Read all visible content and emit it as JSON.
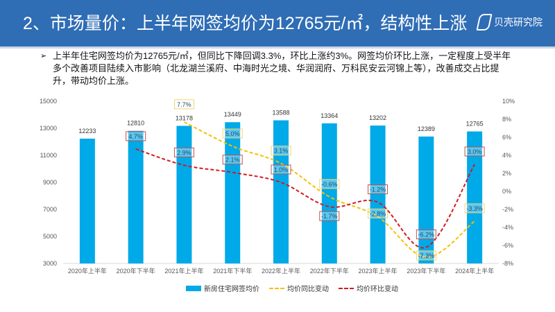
{
  "header": {
    "title": "2、市场量价：上半年网签均价为12765元/㎡，结构性上涨",
    "logo": "贝壳研究院"
  },
  "bullet": {
    "icon": "arrow-bullet-icon",
    "text": "上半年住宅网签均价为12765元/㎡，但同比下降回调3.3%，环比上涨约3%。网签均价环比上涨，一定程度上受半年多个改善项目陆续入市影响（北龙湖兰溪府、中海时光之境、华润润府、万科民安云河锦上等），改善成交占比提升，带动均价上涨。"
  },
  "chart_data": {
    "type": "bar+line",
    "categories": [
      "2020年上半年",
      "2020年下半年",
      "2021年上半年",
      "2021年下半年",
      "2022年上半年",
      "2022年下半年",
      "2023年上半年",
      "2023年下半年",
      "2024年上半年"
    ],
    "series": [
      {
        "name": "新房住宅网签均价",
        "type": "bar",
        "axis": "left",
        "color": "#00a9e8",
        "values": [
          12233,
          12810,
          13178,
          13449,
          13588,
          13364,
          13202,
          12389,
          12765
        ],
        "labels": [
          "12233",
          "12810",
          "13178",
          "13449",
          "13588",
          "13364",
          "13202",
          "12389",
          "12765"
        ]
      },
      {
        "name": "均价同比变动",
        "type": "line",
        "axis": "right",
        "color": "#f5c000",
        "values": [
          null,
          null,
          7.7,
          5.0,
          3.1,
          -0.6,
          -2.8,
          -7.3,
          -3.3
        ],
        "labels": [
          null,
          null,
          "7.7%",
          "5.0%",
          "3.1%",
          "-0.6%",
          "-2.8%",
          "-7.3%",
          "-3.3%"
        ]
      },
      {
        "name": "均价环比变动",
        "type": "line",
        "axis": "right",
        "color": "#d4191f",
        "values": [
          null,
          4.7,
          2.9,
          2.1,
          1.0,
          -1.7,
          -1.2,
          -6.2,
          3.0
        ],
        "labels": [
          null,
          "4.7%",
          "2.9%",
          "2.1%",
          "1.0%",
          "-1.7%",
          "-1.2%",
          "-6.2%",
          "3.0%"
        ]
      }
    ],
    "left_axis": {
      "range": [
        3000,
        15000
      ],
      "ticks": [
        "3000",
        "5000",
        "7000",
        "9000",
        "11000",
        "13000",
        "15000"
      ]
    },
    "right_axis": {
      "range": [
        -8,
        10
      ],
      "ticks": [
        "-8%",
        "-6%",
        "-4%",
        "-2%",
        "0%",
        "2%",
        "4%",
        "6%",
        "8%",
        "10%"
      ]
    },
    "legend": "bottom"
  }
}
